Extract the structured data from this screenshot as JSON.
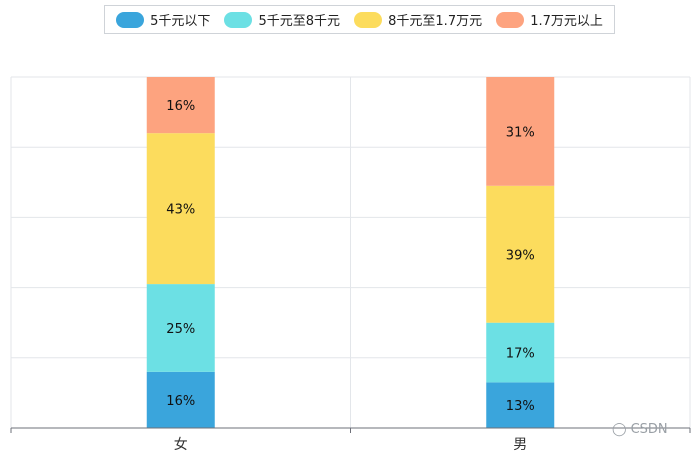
{
  "chart_data": {
    "type": "bar",
    "stacked": true,
    "categories": [
      "女",
      "男"
    ],
    "series": [
      {
        "name": "5千元以下",
        "values": [
          16,
          13
        ],
        "color": "#3aa5dc"
      },
      {
        "name": "5千元至8千元",
        "values": [
          25,
          17
        ],
        "color": "#6ce0e4"
      },
      {
        "name": "8千元至1.7万元",
        "values": [
          43,
          39
        ],
        "color": "#fcdc5d"
      },
      {
        "name": "1.7万元以上",
        "values": [
          16,
          31
        ],
        "color": "#fda37f"
      }
    ],
    "value_suffix": "%",
    "ylim": [
      0,
      100
    ],
    "grid": true,
    "legend_position": "top"
  },
  "watermark": {
    "text": "CSDN",
    "icon": "wechat-icon"
  }
}
